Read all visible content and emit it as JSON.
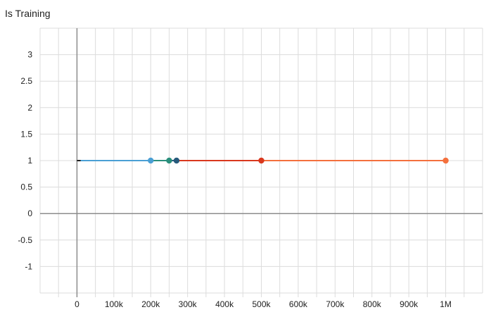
{
  "chart_data": {
    "type": "line",
    "title": "Is Training",
    "xlabel": "",
    "ylabel": "",
    "xlim": [
      -100000,
      1100000
    ],
    "ylim": [
      -1.5,
      3.5
    ],
    "x_ticks": [
      0,
      100000,
      200000,
      300000,
      400000,
      500000,
      600000,
      700000,
      800000,
      900000,
      1000000
    ],
    "x_tick_labels": [
      "0",
      "100k",
      "200k",
      "300k",
      "400k",
      "500k",
      "600k",
      "700k",
      "800k",
      "900k",
      "1M"
    ],
    "y_ticks": [
      -1,
      -0.5,
      0,
      0.5,
      1,
      1.5,
      2,
      2.5,
      3
    ],
    "y_tick_labels": [
      "-1",
      "-0.5",
      "0",
      "0.5",
      "1",
      "1.5",
      "2",
      "2.5",
      "3"
    ],
    "grid": true,
    "series": [
      {
        "color": "#1f1f1f",
        "x": [
          0,
          10000
        ],
        "y": [
          1,
          1
        ],
        "markers": []
      },
      {
        "color": "#4a9fd4",
        "x": [
          0,
          200000
        ],
        "y": [
          1,
          1
        ],
        "markers": [
          200000
        ]
      },
      {
        "color": "#2a8f7c",
        "x": [
          0,
          250000
        ],
        "y": [
          1,
          1
        ],
        "markers": [
          250000
        ]
      },
      {
        "color": "#275a7c",
        "x": [
          0,
          270000
        ],
        "y": [
          1,
          1
        ],
        "markers": [
          270000
        ]
      },
      {
        "color": "#d9381e",
        "x": [
          0,
          500000
        ],
        "y": [
          1,
          1
        ],
        "markers": [
          500000
        ]
      },
      {
        "color": "#f4703d",
        "x": [
          0,
          1000000
        ],
        "y": [
          1,
          1
        ],
        "markers": [
          1000000
        ]
      }
    ]
  }
}
